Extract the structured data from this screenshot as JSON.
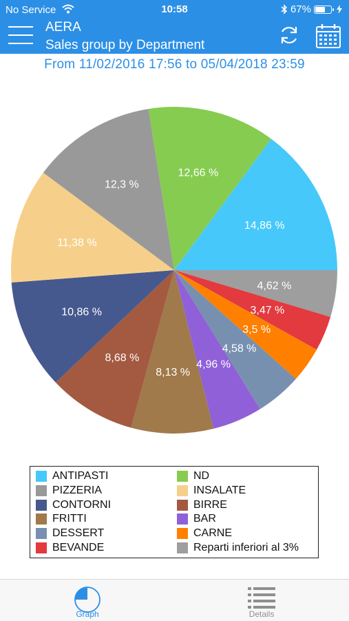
{
  "status_bar": {
    "carrier": "No Service",
    "time": "10:58",
    "battery": "67%",
    "battery_level": 0.67
  },
  "header": {
    "title": "AERA",
    "subtitle": "Sales group by Department"
  },
  "date_range": "From 11/02/2016 17:56 to 05/04/2018 23:59",
  "chart_data": {
    "type": "pie",
    "title": "",
    "start_angle_deg": 0,
    "direction": "clockwise",
    "slices": [
      {
        "name": "Reparti inferiori al 3%",
        "label": "4,62 %",
        "value": 4.62,
        "color": "#9e9e9e"
      },
      {
        "name": "BEVANDE",
        "label": "3,47 %",
        "value": 3.47,
        "color": "#e23a3f"
      },
      {
        "name": "CARNE",
        "label": "3,5 %",
        "value": 3.5,
        "color": "#ff8000"
      },
      {
        "name": "DESSERT",
        "label": "4,58 %",
        "value": 4.58,
        "color": "#7890b0"
      },
      {
        "name": "BAR",
        "label": "4,96 %",
        "value": 4.96,
        "color": "#9060d8"
      },
      {
        "name": "FRITTI",
        "label": "8,13 %",
        "value": 8.13,
        "color": "#a07a4a"
      },
      {
        "name": "BIRRE",
        "label": "8,68 %",
        "value": 8.68,
        "color": "#a35a40"
      },
      {
        "name": "CONTORNI",
        "label": "10,86 %",
        "value": 10.86,
        "color": "#45598f"
      },
      {
        "name": "INSALATE",
        "label": "11,38 %",
        "value": 11.38,
        "color": "#f6d08a"
      },
      {
        "name": "PIZZERIA",
        "label": "12,3 %",
        "value": 12.3,
        "color": "#999999"
      },
      {
        "name": "ND",
        "label": "12,66 %",
        "value": 12.66,
        "color": "#86cc50"
      },
      {
        "name": "ANTIPASTI",
        "label": "14,86 %",
        "value": 14.86,
        "color": "#47c8fa"
      }
    ],
    "legend_position": "bottom",
    "legend": [
      {
        "name": "ANTIPASTI",
        "color": "#47c8fa"
      },
      {
        "name": "ND",
        "color": "#86cc50"
      },
      {
        "name": "PIZZERIA",
        "color": "#999999"
      },
      {
        "name": "INSALATE",
        "color": "#f6d08a"
      },
      {
        "name": "CONTORNI",
        "color": "#45598f"
      },
      {
        "name": "BIRRE",
        "color": "#a35a40"
      },
      {
        "name": "FRITTI",
        "color": "#a07a4a"
      },
      {
        "name": "BAR",
        "color": "#9060d8"
      },
      {
        "name": "DESSERT",
        "color": "#7890b0"
      },
      {
        "name": "CARNE",
        "color": "#ff8000"
      },
      {
        "name": "BEVANDE",
        "color": "#e23a3f"
      },
      {
        "name": "Reparti inferiori al 3%",
        "color": "#9e9e9e"
      }
    ]
  },
  "tabs": [
    {
      "label": "Graph",
      "active": true,
      "color": "#2c8fe6"
    },
    {
      "label": "Details",
      "active": false,
      "color": "#8e8e8e"
    }
  ]
}
